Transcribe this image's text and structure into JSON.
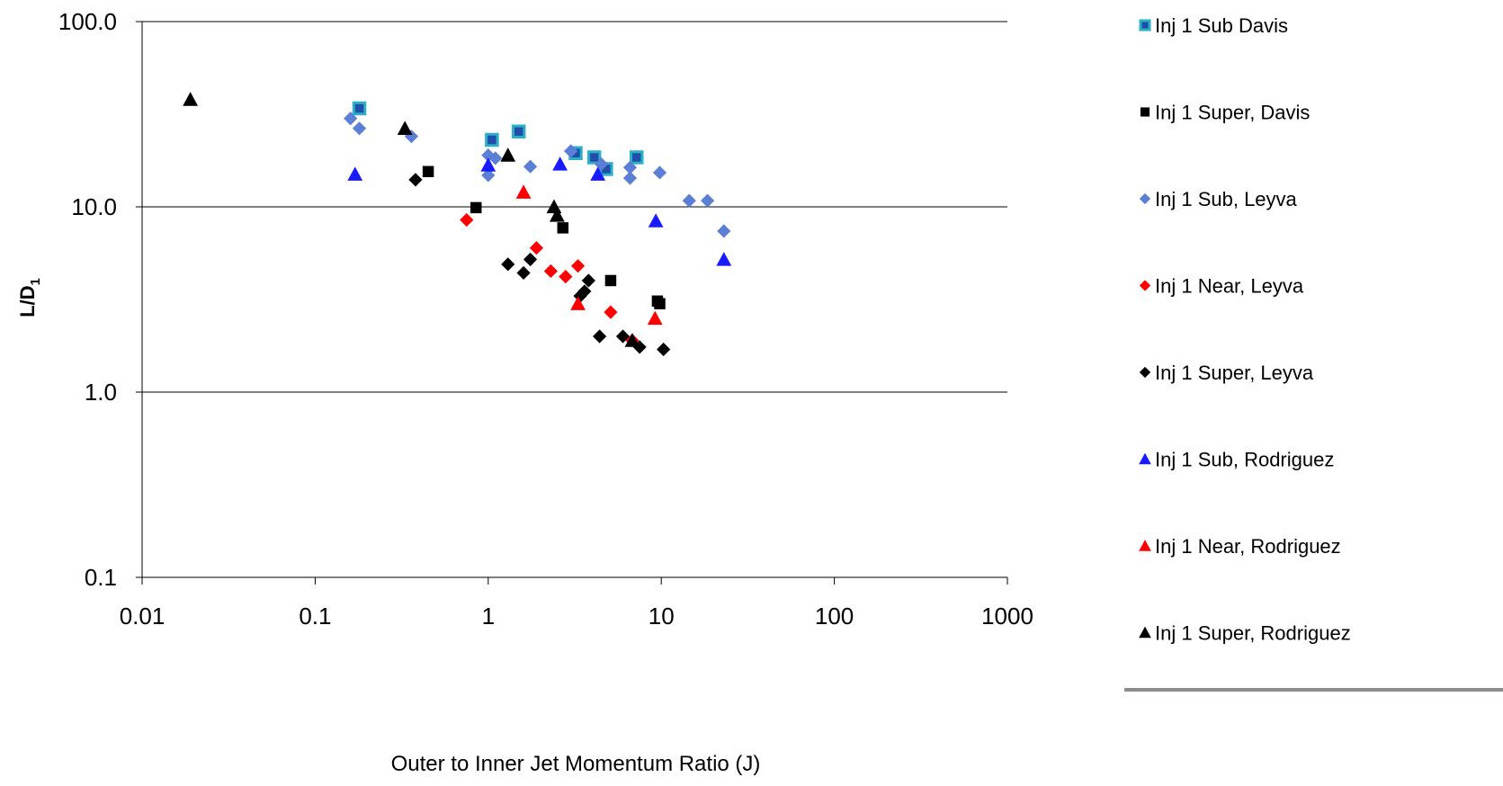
{
  "chart_data": {
    "type": "scatter",
    "xlabel": "Outer to Inner Jet Momentum Ratio (J)",
    "ylabel": "L/D",
    "ylabel_subscript": "1",
    "xscale": "log",
    "yscale": "log",
    "xlim": [
      0.01,
      1000
    ],
    "ylim": [
      0.1,
      100
    ],
    "x_ticks": [
      "0.01",
      "0.1",
      "1",
      "10",
      "100",
      "1000"
    ],
    "y_ticks": [
      "0.1",
      "1.0",
      "10.0",
      "100.0"
    ],
    "grid": "horizontal major",
    "legend_position": "right",
    "series": [
      {
        "name": "Inj 1 Sub Davis",
        "marker": "square-outlined",
        "color": "#1f4fa8",
        "edge_color": "#2bb0c8",
        "points": [
          [
            0.18,
            34
          ],
          [
            1.05,
            23
          ],
          [
            1.5,
            25.5
          ],
          [
            3.2,
            19.5
          ],
          [
            4.1,
            18.5
          ],
          [
            4.8,
            16
          ],
          [
            7.2,
            18.5
          ]
        ]
      },
      {
        "name": "Inj 1 Super, Davis",
        "marker": "square",
        "color": "#000000",
        "points": [
          [
            0.45,
            15.5
          ],
          [
            0.85,
            9.9
          ],
          [
            2.7,
            7.7
          ],
          [
            5.1,
            4.0
          ],
          [
            9.5,
            3.1
          ],
          [
            9.8,
            3.0
          ]
        ]
      },
      {
        "name": "Inj 1 Sub, Leyva",
        "marker": "diamond",
        "color": "#5b7fd4",
        "points": [
          [
            0.16,
            30
          ],
          [
            0.18,
            26.5
          ],
          [
            0.36,
            24
          ],
          [
            1.0,
            14.8
          ],
          [
            1.0,
            19
          ],
          [
            1.1,
            18.3
          ],
          [
            1.75,
            16.5
          ],
          [
            3.0,
            20
          ],
          [
            4.5,
            17
          ],
          [
            6.6,
            16.3
          ],
          [
            6.6,
            14.3
          ],
          [
            9.8,
            15.3
          ],
          [
            14.5,
            10.8
          ],
          [
            18.5,
            10.8
          ],
          [
            23,
            7.4
          ]
        ]
      },
      {
        "name": "Inj 1 Near, Leyva",
        "marker": "diamond",
        "color": "#ff0000",
        "points": [
          [
            0.75,
            8.5
          ],
          [
            1.9,
            6.0
          ],
          [
            2.3,
            4.5
          ],
          [
            2.8,
            4.2
          ],
          [
            3.3,
            4.8
          ],
          [
            5.1,
            2.7
          ],
          [
            6.8,
            1.9
          ]
        ]
      },
      {
        "name": "Inj 1 Super, Leyva",
        "marker": "diamond",
        "color": "#000000",
        "points": [
          [
            0.38,
            14
          ],
          [
            1.3,
            4.9
          ],
          [
            1.6,
            4.4
          ],
          [
            1.75,
            5.2
          ],
          [
            3.4,
            3.3
          ],
          [
            3.6,
            3.5
          ],
          [
            3.8,
            4.0
          ],
          [
            4.4,
            2.0
          ],
          [
            6.0,
            2.0
          ],
          [
            7.5,
            1.75
          ],
          [
            10.3,
            1.7
          ]
        ]
      },
      {
        "name": "Inj 1 Sub, Rodriguez",
        "marker": "triangle",
        "color": "#1a1aff",
        "points": [
          [
            0.17,
            15
          ],
          [
            1.0,
            16.8
          ],
          [
            2.6,
            17
          ],
          [
            4.3,
            15
          ],
          [
            9.3,
            8.4
          ],
          [
            23,
            5.2
          ]
        ]
      },
      {
        "name": "Inj 1 Near, Rodriguez",
        "marker": "triangle",
        "color": "#ff0000",
        "points": [
          [
            1.6,
            12
          ],
          [
            3.3,
            3.0
          ],
          [
            9.2,
            2.5
          ]
        ]
      },
      {
        "name": "Inj 1 Super, Rodriguez",
        "marker": "triangle",
        "color": "#000000",
        "points": [
          [
            0.019,
            38
          ],
          [
            0.33,
            26.5
          ],
          [
            1.3,
            19
          ],
          [
            2.4,
            10
          ],
          [
            2.5,
            9
          ],
          [
            6.8,
            1.9
          ]
        ]
      }
    ]
  }
}
